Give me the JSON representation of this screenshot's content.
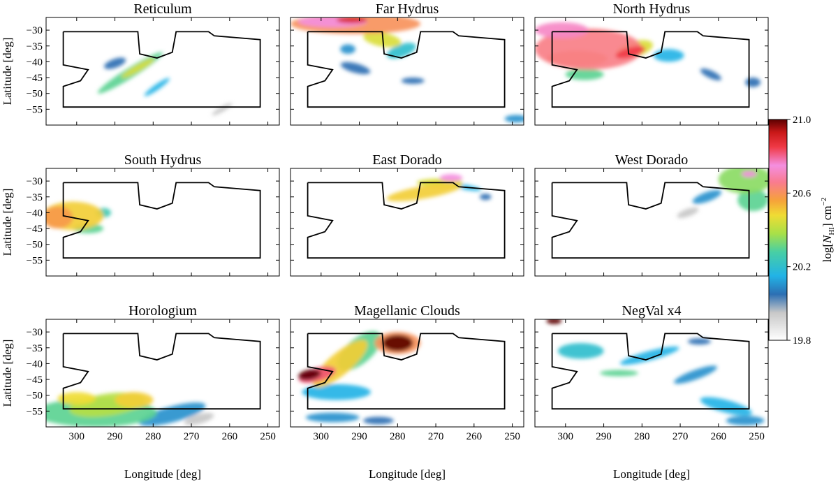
{
  "chart_data": {
    "type": "heatmap",
    "x_axis": {
      "label": "Longitude [deg]",
      "lim": [
        308,
        247
      ],
      "ticks": [
        300,
        290,
        280,
        270,
        260,
        250
      ],
      "tick_labels": [
        "300",
        "290",
        "280",
        "270",
        "260",
        "250"
      ]
    },
    "y_axis": {
      "label": "Latitude [deg]",
      "lim": [
        -60,
        -26
      ],
      "ticks": [
        -30,
        -35,
        -40,
        -45,
        -50,
        -55
      ],
      "tick_labels": [
        "−30",
        "−35",
        "−40",
        "−45",
        "−50",
        "−55"
      ]
    },
    "colorbar": {
      "label_prefix": "log[",
      "label_n": "N",
      "label_sub": "HI",
      "label_suffix": "] cm",
      "label_sup": "−2",
      "min": 19.8,
      "max": 21.0,
      "ticks": [
        21.0,
        20.6,
        20.2,
        19.8
      ],
      "tick_labels": [
        "21.0",
        "20.6",
        "20.2",
        "19.8"
      ],
      "stops": [
        {
          "v": 19.8,
          "color": "#ffffff"
        },
        {
          "v": 19.95,
          "color": "#c8c8c8"
        },
        {
          "v": 20.05,
          "color": "#2c6fb3"
        },
        {
          "v": 20.15,
          "color": "#22b3e6"
        },
        {
          "v": 20.28,
          "color": "#48cfa4"
        },
        {
          "v": 20.38,
          "color": "#a8e048"
        },
        {
          "v": 20.48,
          "color": "#f0dc34"
        },
        {
          "v": 20.56,
          "color": "#f6a23a"
        },
        {
          "v": 20.66,
          "color": "#f97b90"
        },
        {
          "v": 20.75,
          "color": "#f48fe0"
        },
        {
          "v": 20.85,
          "color": "#f03a46"
        },
        {
          "v": 20.93,
          "color": "#c91818"
        },
        {
          "v": 21.0,
          "color": "#5c0000"
        }
      ]
    },
    "survey_footprint": [
      [
        303.5,
        -30.5
      ],
      [
        284.0,
        -30.5
      ],
      [
        283.5,
        -37.5
      ],
      [
        279.0,
        -38.8
      ],
      [
        275.0,
        -37.0
      ],
      [
        274.0,
        -30.5
      ],
      [
        265.5,
        -30.5
      ],
      [
        264.0,
        -31.8
      ],
      [
        252.0,
        -33.0
      ],
      [
        252.0,
        -54.3
      ],
      [
        303.5,
        -54.3
      ],
      [
        303.5,
        -47.8
      ],
      [
        299.0,
        -46.0
      ],
      [
        297.0,
        -42.5
      ],
      [
        303.5,
        -41.0
      ],
      [
        303.5,
        -30.5
      ]
    ],
    "panels": [
      {
        "title": "Reticulum",
        "blobs": [
          {
            "lon": 286,
            "lat": -43.5,
            "a": 10,
            "b": 1.6,
            "angle": -32,
            "v": 20.3
          },
          {
            "lon": 284,
            "lat": -42.0,
            "a": 5,
            "b": 1.0,
            "angle": -30,
            "v": 20.45
          },
          {
            "lon": 279,
            "lat": -48.0,
            "a": 4,
            "b": 0.9,
            "angle": -35,
            "v": 20.15
          },
          {
            "lon": 290,
            "lat": -40.5,
            "a": 3,
            "b": 1.4,
            "angle": -20,
            "v": 20.05
          },
          {
            "lon": 262,
            "lat": -55.0,
            "a": 3,
            "b": 0.8,
            "angle": -30,
            "v": 19.95
          }
        ]
      },
      {
        "title": "Far Hydrus",
        "blobs": [
          {
            "lon": 291,
            "lat": -28.0,
            "a": 17,
            "b": 3.2,
            "angle": 0,
            "v": 20.6
          },
          {
            "lon": 297,
            "lat": -27.3,
            "a": 9,
            "b": 1.8,
            "angle": 0,
            "v": 20.75
          },
          {
            "lon": 292,
            "lat": -26.8,
            "a": 4,
            "b": 1.0,
            "angle": 0,
            "v": 20.9
          },
          {
            "lon": 284,
            "lat": -33.0,
            "a": 5,
            "b": 2.2,
            "angle": 10,
            "v": 20.45
          },
          {
            "lon": 279,
            "lat": -36.5,
            "a": 4,
            "b": 2.0,
            "angle": -20,
            "v": 20.2
          },
          {
            "lon": 293,
            "lat": -36.0,
            "a": 2,
            "b": 1.5,
            "angle": 0,
            "v": 20.1
          },
          {
            "lon": 291,
            "lat": -42.0,
            "a": 4,
            "b": 1.5,
            "angle": 15,
            "v": 20.05
          },
          {
            "lon": 276,
            "lat": -46.0,
            "a": 3,
            "b": 1.0,
            "angle": 0,
            "v": 20.05
          },
          {
            "lon": 249,
            "lat": -58.0,
            "a": 3,
            "b": 1.2,
            "angle": 0,
            "v": 20.1
          }
        ]
      },
      {
        "title": "North Hydrus",
        "blobs": [
          {
            "lon": 294,
            "lat": -36.0,
            "a": 14,
            "b": 6.5,
            "angle": 0,
            "v": 20.65
          },
          {
            "lon": 301,
            "lat": -30.0,
            "a": 7,
            "b": 2.5,
            "angle": 0,
            "v": 20.72
          },
          {
            "lon": 282,
            "lat": -36.0,
            "a": 5,
            "b": 2.5,
            "angle": -15,
            "v": 20.45
          },
          {
            "lon": 283,
            "lat": -37.0,
            "a": 4,
            "b": 1.5,
            "angle": -15,
            "v": 20.85
          },
          {
            "lon": 297,
            "lat": -39.0,
            "a": 8,
            "b": 2.5,
            "angle": 0,
            "v": 20.6
          },
          {
            "lon": 295,
            "lat": -44.0,
            "a": 5,
            "b": 1.8,
            "angle": 0,
            "v": 20.3
          },
          {
            "lon": 273,
            "lat": -38.0,
            "a": 4,
            "b": 2.0,
            "angle": 0,
            "v": 20.15
          },
          {
            "lon": 262,
            "lat": -44.0,
            "a": 3,
            "b": 1.2,
            "angle": 25,
            "v": 20.05
          },
          {
            "lon": 251,
            "lat": -46.5,
            "a": 2,
            "b": 1.5,
            "angle": 0,
            "v": 20.05
          }
        ]
      },
      {
        "title": "South Hydrus",
        "blobs": [
          {
            "lon": 301,
            "lat": -41.0,
            "a": 8,
            "b": 4.5,
            "angle": 0,
            "v": 20.5
          },
          {
            "lon": 305,
            "lat": -41.5,
            "a": 4,
            "b": 3.5,
            "angle": 0,
            "v": 20.58
          },
          {
            "lon": 297,
            "lat": -45.0,
            "a": 4,
            "b": 1.5,
            "angle": 0,
            "v": 20.3
          },
          {
            "lon": 293,
            "lat": -40.0,
            "a": 2,
            "b": 1.5,
            "angle": 0,
            "v": 20.25
          }
        ]
      },
      {
        "title": "East Dorado",
        "blobs": [
          {
            "lon": 273,
            "lat": -33.5,
            "a": 10,
            "b": 2.0,
            "angle": -10,
            "v": 20.5
          },
          {
            "lon": 269,
            "lat": -30.5,
            "a": 6,
            "b": 1.3,
            "angle": 0,
            "v": 20.45
          },
          {
            "lon": 266,
            "lat": -29.0,
            "a": 3,
            "b": 1.2,
            "angle": 0,
            "v": 20.75
          },
          {
            "lon": 262,
            "lat": -32.0,
            "a": 4,
            "b": 0.8,
            "angle": 10,
            "v": 20.15
          },
          {
            "lon": 257,
            "lat": -35.0,
            "a": 1.5,
            "b": 1.0,
            "angle": 0,
            "v": 20.05
          }
        ]
      },
      {
        "title": "West Dorado",
        "blobs": [
          {
            "lon": 253,
            "lat": -29.5,
            "a": 7,
            "b": 4.5,
            "angle": 0,
            "v": 20.35
          },
          {
            "lon": 251,
            "lat": -36.0,
            "a": 4,
            "b": 3.5,
            "angle": 0,
            "v": 20.3
          },
          {
            "lon": 263,
            "lat": -35.0,
            "a": 4,
            "b": 1.5,
            "angle": -20,
            "v": 20.1
          },
          {
            "lon": 268,
            "lat": -40.0,
            "a": 3,
            "b": 1.2,
            "angle": -20,
            "v": 19.95
          },
          {
            "lon": 252,
            "lat": -27.8,
            "a": 2,
            "b": 1.0,
            "angle": 0,
            "v": 20.75
          }
        ]
      },
      {
        "title": "Horologium",
        "blobs": [
          {
            "lon": 295,
            "lat": -55.5,
            "a": 16,
            "b": 4.5,
            "angle": 0,
            "v": 20.3
          },
          {
            "lon": 292,
            "lat": -53.0,
            "a": 10,
            "b": 3.5,
            "angle": -8,
            "v": 20.4
          },
          {
            "lon": 300,
            "lat": -51.0,
            "a": 5,
            "b": 2.0,
            "angle": 0,
            "v": 20.48
          },
          {
            "lon": 285,
            "lat": -51.5,
            "a": 5,
            "b": 2.5,
            "angle": 0,
            "v": 20.5
          },
          {
            "lon": 275,
            "lat": -56.0,
            "a": 9,
            "b": 2.5,
            "angle": -15,
            "v": 20.1
          },
          {
            "lon": 268,
            "lat": -57.5,
            "a": 4,
            "b": 1.5,
            "angle": -15,
            "v": 19.95
          }
        ]
      },
      {
        "title": "Magellanic Clouds",
        "blobs": [
          {
            "lon": 295,
            "lat": -40.0,
            "a": 9,
            "b": 3.5,
            "angle": -40,
            "v": 20.5
          },
          {
            "lon": 290,
            "lat": -36.0,
            "a": 7,
            "b": 4.0,
            "angle": -40,
            "v": 20.3
          },
          {
            "lon": 301,
            "lat": -43.5,
            "a": 5,
            "b": 2.2,
            "angle": -15,
            "v": 20.82
          },
          {
            "lon": 303,
            "lat": -43.5,
            "a": 3,
            "b": 1.6,
            "angle": -10,
            "v": 21.0
          },
          {
            "lon": 296,
            "lat": -49.0,
            "a": 9,
            "b": 2.5,
            "angle": 0,
            "v": 20.15
          },
          {
            "lon": 280,
            "lat": -33.5,
            "a": 6,
            "b": 3.5,
            "angle": 0,
            "v": 20.6
          },
          {
            "lon": 280,
            "lat": -33.5,
            "a": 4,
            "b": 2.6,
            "angle": 0,
            "v": 21.0
          },
          {
            "lon": 297,
            "lat": -57.0,
            "a": 7,
            "b": 1.5,
            "angle": 0,
            "v": 20.1
          },
          {
            "lon": 285,
            "lat": -58.0,
            "a": 4,
            "b": 1.2,
            "angle": 0,
            "v": 20.05
          }
        ]
      },
      {
        "title": "NegVal x4",
        "blobs": [
          {
            "lon": 303,
            "lat": -26.5,
            "a": 2,
            "b": 1.0,
            "angle": 0,
            "v": 21.0
          },
          {
            "lon": 296,
            "lat": -36.0,
            "a": 6,
            "b": 2.5,
            "angle": 0,
            "v": 20.2
          },
          {
            "lon": 278,
            "lat": -37.5,
            "a": 8,
            "b": 1.5,
            "angle": -15,
            "v": 20.15
          },
          {
            "lon": 286,
            "lat": -43.0,
            "a": 5,
            "b": 1.0,
            "angle": 0,
            "v": 20.3
          },
          {
            "lon": 266,
            "lat": -43.5,
            "a": 6,
            "b": 1.5,
            "angle": -20,
            "v": 20.1
          },
          {
            "lon": 258,
            "lat": -53.5,
            "a": 7,
            "b": 2.0,
            "angle": 15,
            "v": 20.15
          },
          {
            "lon": 253,
            "lat": -58.0,
            "a": 5,
            "b": 1.5,
            "angle": 0,
            "v": 20.1
          },
          {
            "lon": 265,
            "lat": -33.0,
            "a": 3,
            "b": 1.0,
            "angle": 0,
            "v": 20.05
          }
        ]
      }
    ]
  }
}
